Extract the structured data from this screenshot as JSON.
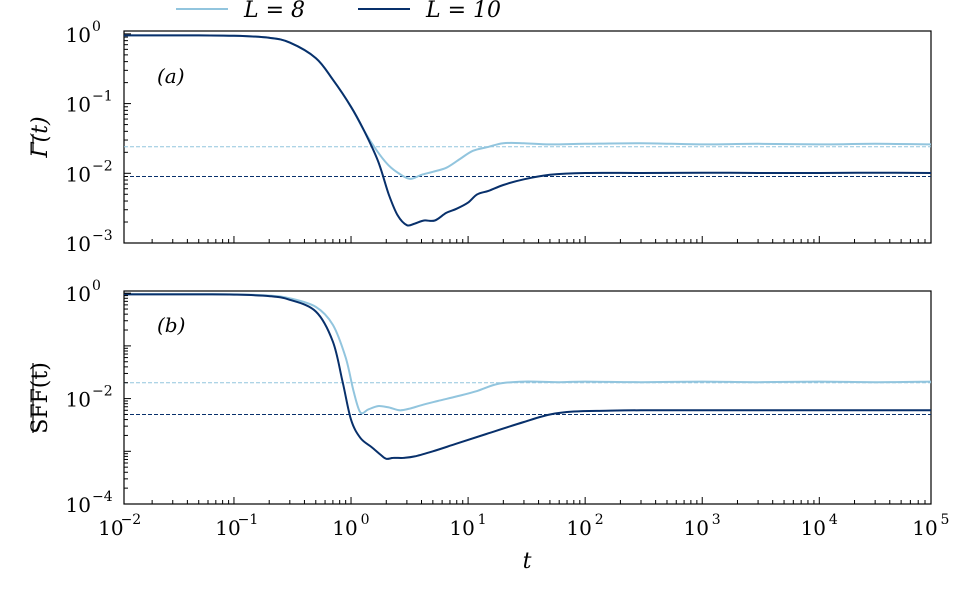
{
  "colors": {
    "light": "#92c5de",
    "dark": "#08306b"
  },
  "legend": [
    {
      "name": "L = 8",
      "color": "#92c5de"
    },
    {
      "name": "L = 10",
      "color": "#08306b"
    }
  ],
  "chart_data": [
    {
      "type": "line",
      "panel_label": "(a)",
      "ylabel": "Γ(t)",
      "xlabel": "",
      "x_scale": "log",
      "y_scale": "log",
      "xlim": [
        0.0115,
        90000
      ],
      "ylim": [
        0.001,
        1.1
      ],
      "y_ticks": [
        {
          "base": "10",
          "exp": "0",
          "value": 1
        },
        {
          "base": "10",
          "exp": "−1",
          "value": 0.1
        },
        {
          "base": "10",
          "exp": "−2",
          "value": 0.01
        },
        {
          "base": "10",
          "exp": "−3",
          "value": 0.001
        }
      ],
      "series": [
        {
          "name": "L = 8",
          "color": "#92c5de",
          "plateau": 0.024,
          "x": [
            0.0115,
            0.05,
            0.1,
            0.2,
            0.3,
            0.5,
            0.7,
            1.0,
            1.3,
            1.7,
            2.1,
            2.6,
            3.2,
            4.0,
            5.0,
            6.5,
            8.5,
            11,
            15,
            20,
            30,
            50,
            100,
            300,
            1000,
            3000,
            10000,
            30000,
            90000
          ],
          "y": [
            0.95,
            0.95,
            0.94,
            0.88,
            0.75,
            0.45,
            0.22,
            0.09,
            0.04,
            0.02,
            0.013,
            0.0098,
            0.0083,
            0.0095,
            0.0105,
            0.012,
            0.016,
            0.021,
            0.024,
            0.027,
            0.027,
            0.026,
            0.0265,
            0.027,
            0.026,
            0.0265,
            0.026,
            0.0265,
            0.026
          ]
        },
        {
          "name": "L = 10",
          "color": "#08306b",
          "plateau": 0.009,
          "x": [
            0.0115,
            0.05,
            0.1,
            0.2,
            0.3,
            0.5,
            0.7,
            1.0,
            1.3,
            1.7,
            2.1,
            2.5,
            3.0,
            3.5,
            4.2,
            5.2,
            6.5,
            8.0,
            10,
            12,
            15,
            20,
            30,
            50,
            100,
            300,
            1000,
            3000,
            10000,
            30000,
            90000
          ],
          "y": [
            0.95,
            0.95,
            0.94,
            0.88,
            0.75,
            0.45,
            0.22,
            0.09,
            0.04,
            0.015,
            0.005,
            0.0025,
            0.0018,
            0.0019,
            0.0021,
            0.0021,
            0.0027,
            0.0031,
            0.0038,
            0.005,
            0.0056,
            0.0068,
            0.0082,
            0.0095,
            0.0101,
            0.0101,
            0.0102,
            0.0101,
            0.0101,
            0.0102,
            0.0101
          ]
        }
      ]
    },
    {
      "type": "line",
      "panel_label": "(b)",
      "ylabel": "SFF(t)",
      "xlabel": "t",
      "x_scale": "log",
      "y_scale": "log",
      "xlim": [
        0.0115,
        90000
      ],
      "ylim": [
        0.0001,
        1.1
      ],
      "x_ticks": [
        {
          "base": "10",
          "exp": "−2",
          "value": 0.01
        },
        {
          "base": "10",
          "exp": "−1",
          "value": 0.1
        },
        {
          "base": "10",
          "exp": "0",
          "value": 1
        },
        {
          "base": "10",
          "exp": "1",
          "value": 10
        },
        {
          "base": "10",
          "exp": "2",
          "value": 100
        },
        {
          "base": "10",
          "exp": "3",
          "value": 1000
        },
        {
          "base": "10",
          "exp": "4",
          "value": 10000
        },
        {
          "base": "10",
          "exp": "5",
          "value": 100000
        }
      ],
      "y_ticks": [
        {
          "base": "10",
          "exp": "0",
          "value": 1
        },
        {
          "base": "10",
          "exp": "−2",
          "value": 0.01
        },
        {
          "base": "10",
          "exp": "−4",
          "value": 0.0001
        }
      ],
      "series": [
        {
          "name": "L = 8",
          "color": "#92c5de",
          "plateau": 0.02,
          "x": [
            0.0115,
            0.05,
            0.1,
            0.2,
            0.3,
            0.5,
            0.7,
            0.9,
            1.05,
            1.2,
            1.4,
            1.7,
            2.1,
            2.6,
            3.2,
            4.0,
            5.5,
            8,
            12,
            18,
            30,
            60,
            100,
            300,
            1000,
            3000,
            10000,
            30000,
            90000
          ],
          "y": [
            0.96,
            0.96,
            0.95,
            0.9,
            0.8,
            0.55,
            0.25,
            0.06,
            0.014,
            0.0055,
            0.0062,
            0.0072,
            0.0068,
            0.006,
            0.0065,
            0.0075,
            0.009,
            0.011,
            0.014,
            0.019,
            0.021,
            0.0205,
            0.021,
            0.0205,
            0.021,
            0.0205,
            0.021,
            0.0205,
            0.021
          ]
        },
        {
          "name": "L = 10",
          "color": "#08306b",
          "plateau": 0.005,
          "x": [
            0.0115,
            0.05,
            0.1,
            0.2,
            0.3,
            0.5,
            0.7,
            0.85,
            1.0,
            1.2,
            1.5,
            1.8,
            2.0,
            2.3,
            2.8,
            3.5,
            5,
            8,
            15,
            30,
            50,
            80,
            150,
            300,
            1000,
            3000,
            10000,
            30000,
            90000
          ],
          "y": [
            0.95,
            0.95,
            0.94,
            0.88,
            0.75,
            0.45,
            0.12,
            0.02,
            0.004,
            0.0018,
            0.0012,
            0.00085,
            0.00072,
            0.00075,
            0.00075,
            0.0008,
            0.001,
            0.0014,
            0.0022,
            0.0036,
            0.005,
            0.0057,
            0.0059,
            0.006,
            0.006,
            0.006,
            0.006,
            0.006,
            0.006
          ]
        }
      ]
    }
  ]
}
